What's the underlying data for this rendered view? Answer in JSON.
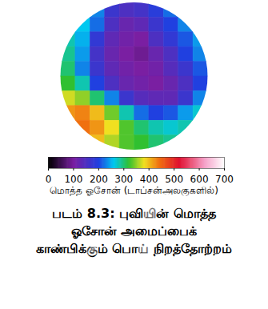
{
  "chart_data": {
    "type": "heatmap",
    "cells": [
      [
        null,
        null,
        230,
        170,
        150,
        160,
        190,
        220,
        null,
        null
      ],
      [
        null,
        260,
        220,
        150,
        120,
        130,
        170,
        200,
        230,
        null
      ],
      [
        280,
        250,
        180,
        130,
        110,
        100,
        150,
        180,
        210,
        240
      ],
      [
        290,
        240,
        160,
        120,
        100,
        90,
        120,
        150,
        200,
        230
      ],
      [
        300,
        230,
        170,
        130,
        110,
        100,
        110,
        140,
        170,
        210
      ],
      [
        320,
        280,
        200,
        150,
        120,
        110,
        100,
        120,
        150,
        200
      ],
      [
        370,
        350,
        300,
        230,
        170,
        140,
        130,
        130,
        170,
        230
      ],
      [
        420,
        430,
        400,
        340,
        280,
        220,
        200,
        210,
        240,
        270
      ],
      [
        null,
        440,
        420,
        380,
        330,
        300,
        280,
        270,
        280,
        null
      ],
      [
        null,
        null,
        400,
        360,
        330,
        320,
        300,
        290,
        null,
        null
      ]
    ],
    "colorbar": {
      "range": [
        0,
        700
      ],
      "ticks": [
        0,
        100,
        200,
        300,
        400,
        500,
        600,
        700
      ],
      "label": "மொத்த ஓசோன் (டாப்சன்அலகுகளில்)",
      "stops": [
        0,
        100,
        200,
        260,
        320,
        380,
        440,
        520,
        620,
        700
      ],
      "colors": [
        "#000000",
        "#7a1fa2",
        "#2040e0",
        "#00c8f0",
        "#30c030",
        "#f0e020",
        "#f07010",
        "#e01030",
        "#f5a0c8",
        "#ffffff"
      ]
    },
    "caption": "படம் 8.3: புவியின் மொத்த ஓசோன் அமைப்பைக் காண்பிக்கும் பொய் நிறத்தோற்றம்"
  }
}
